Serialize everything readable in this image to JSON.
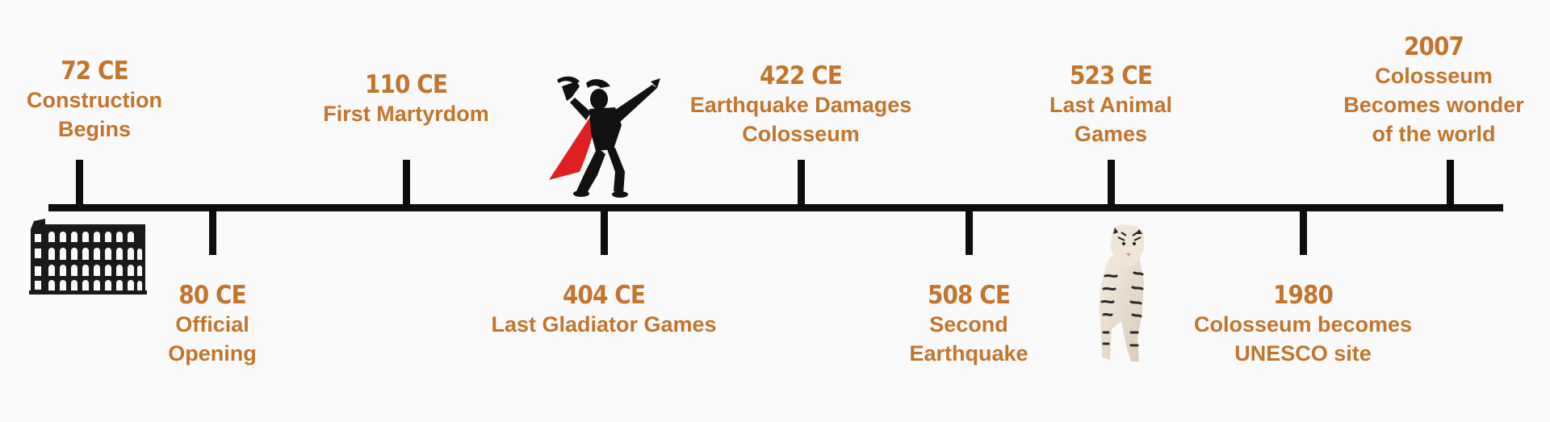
{
  "events": [
    {
      "year": "72 CE",
      "desc": [
        "Construction",
        "Begins"
      ]
    },
    {
      "year": "80 CE",
      "desc": [
        "Official",
        "Opening"
      ]
    },
    {
      "year": "110 CE",
      "desc": [
        "First Martyrdom"
      ]
    },
    {
      "year": "404 CE",
      "desc": [
        "Last Gladiator Games"
      ]
    },
    {
      "year": "422 CE",
      "desc": [
        "Earthquake Damages",
        "Colosseum"
      ]
    },
    {
      "year": "508 CE",
      "desc": [
        "Second",
        "Earthquake"
      ]
    },
    {
      "year": "523 CE",
      "desc": [
        "Last Animal",
        "Games"
      ]
    },
    {
      "year": "1980",
      "desc": [
        "Colosseum  becomes",
        "UNESCO site"
      ]
    },
    {
      "year": "2007",
      "desc": [
        "Colosseum",
        "Becomes wonder",
        "of the world"
      ]
    }
  ],
  "icons": [
    "colosseum-icon",
    "gladiator-icon",
    "tiger-icon"
  ],
  "colors": {
    "text": "#c2752d",
    "axis": "#0d0d0d",
    "cape": "#e02020",
    "background": "#fafafa"
  }
}
